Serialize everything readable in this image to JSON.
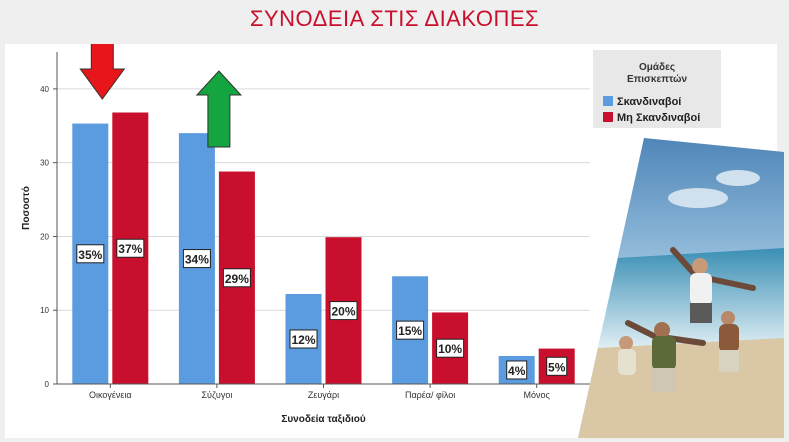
{
  "slide": {
    "title": "ΣΥΝΟΔΕΙΑ ΣΤΙΣ ΔΙΑΚΟΠΕΣ"
  },
  "colors": {
    "title": "#c8102e",
    "scandinavian": "#5b9be0",
    "non_scandinavian": "#c8102e",
    "arrow_down": "#e8151b",
    "arrow_up": "#14a540"
  },
  "icons": {
    "down_arrow": "arrow-down",
    "up_arrow": "arrow-up"
  },
  "photo": {
    "description_icon": "beach-people-photo"
  },
  "chart_data": {
    "type": "bar",
    "xlabel": "Συνοδεία ταξιδιού",
    "ylabel": "Ποσοστό",
    "ylim": [
      0,
      45
    ],
    "yticks": [
      0,
      10,
      20,
      30,
      40
    ],
    "grid": true,
    "legend_position": "top-right",
    "legend_title": "Ομάδες Επισκεπτών",
    "categories": [
      "Οικογένεια",
      "Σύζυγοι",
      "Ζευγάρι",
      "Παρέα/ φίλοι",
      "Μόνος"
    ],
    "series": [
      {
        "name": "Σκανδιναβοί",
        "values": [
          35.3,
          34.0,
          12.2,
          14.6,
          3.8
        ],
        "labels": [
          "35%",
          "34%",
          "12%",
          "15%",
          "4%"
        ]
      },
      {
        "name": "Μη Σκανδιναβοί",
        "values": [
          36.8,
          28.8,
          19.9,
          9.7,
          4.8
        ],
        "labels": [
          "37%",
          "29%",
          "20%",
          "10%",
          "5%"
        ]
      }
    ]
  }
}
